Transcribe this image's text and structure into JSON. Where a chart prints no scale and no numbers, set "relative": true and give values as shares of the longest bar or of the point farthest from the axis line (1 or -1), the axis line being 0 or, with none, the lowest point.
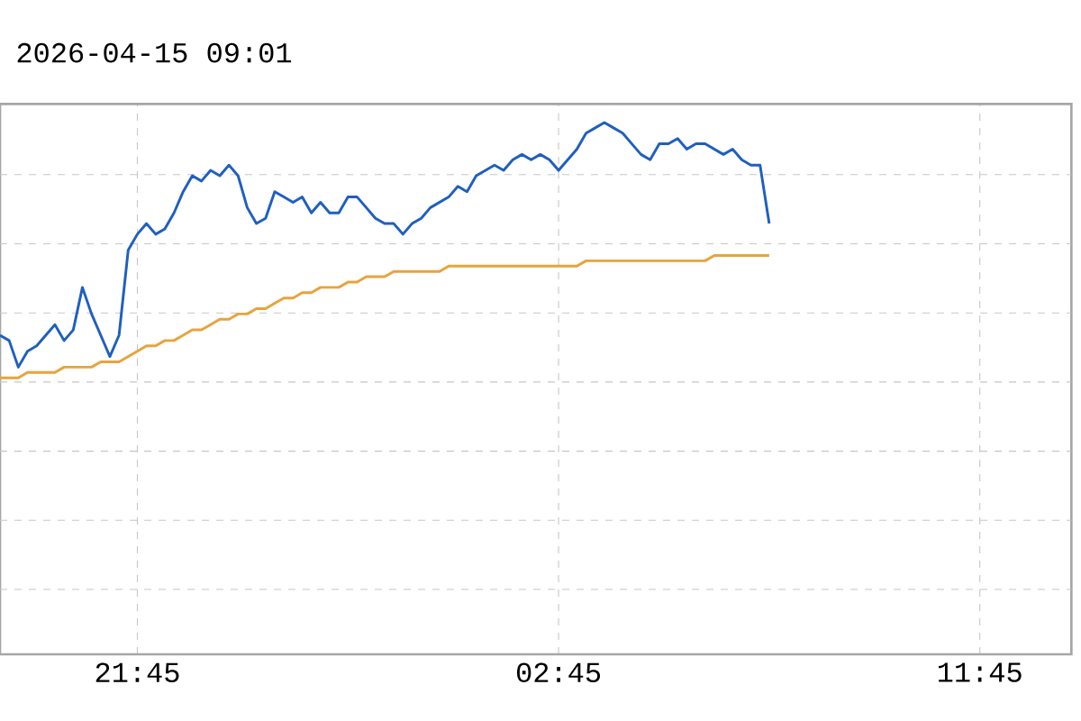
{
  "chart_data": {
    "type": "line",
    "title": "2026-04-15 09:01",
    "relative": true,
    "grid": true,
    "marker": "none",
    "line_style": "solid",
    "categories": [
      null,
      null,
      null,
      null,
      null,
      null,
      null,
      null,
      null,
      null,
      null,
      null,
      null,
      null,
      null,
      "21:45",
      null,
      null,
      null,
      null,
      null,
      null,
      null,
      null,
      null,
      null,
      null,
      null,
      null,
      null,
      null,
      null,
      null,
      null,
      null,
      null,
      null,
      null,
      null,
      null,
      null,
      null,
      null,
      null,
      null,
      null,
      null,
      null,
      null,
      null,
      null,
      null,
      null,
      null,
      null,
      null,
      null,
      null,
      null,
      null,
      null,
      "02:45",
      null,
      null,
      null,
      null,
      null,
      null,
      null,
      null,
      null,
      null,
      null,
      null,
      null,
      null,
      null,
      null,
      null,
      null,
      null,
      null,
      null,
      null,
      null,
      null,
      null,
      null,
      null,
      null,
      null,
      null,
      null,
      null,
      null,
      null,
      null,
      null,
      null,
      null,
      null,
      null,
      null,
      null,
      null,
      null,
      null,
      "11:45",
      null,
      null,
      null,
      null,
      null,
      null,
      null,
      null,
      null,
      null
    ],
    "series": [
      {
        "color": "#1f5fbf",
        "values": [
          0.6,
          0.59,
          0.54,
          0.57,
          0.58,
          0.6,
          0.62,
          0.59,
          0.61,
          0.69,
          0.64,
          0.6,
          0.56,
          0.6,
          0.76,
          0.79,
          0.81,
          0.79,
          0.8,
          0.83,
          0.87,
          0.9,
          0.89,
          0.91,
          0.9,
          0.92,
          0.9,
          0.84,
          0.81,
          0.82,
          0.87,
          0.86,
          0.85,
          0.86,
          0.83,
          0.85,
          0.83,
          0.83,
          0.86,
          0.86,
          0.84,
          0.82,
          0.81,
          0.81,
          0.79,
          0.81,
          0.82,
          0.84,
          0.85,
          0.86,
          0.88,
          0.87,
          0.9,
          0.91,
          0.92,
          0.91,
          0.93,
          0.94,
          0.93,
          0.94,
          0.93,
          0.91,
          0.93,
          0.95,
          0.98,
          0.99,
          1.0,
          0.99,
          0.98,
          0.96,
          0.94,
          0.93,
          0.96,
          0.96,
          0.97,
          0.95,
          0.96,
          0.96,
          0.95,
          0.94,
          0.95,
          0.93,
          0.92,
          0.92,
          0.81,
          null,
          null,
          null,
          null,
          null,
          null,
          null,
          null,
          null,
          null,
          null,
          null,
          null,
          null,
          null,
          null,
          null,
          null,
          null,
          null,
          null,
          null,
          null,
          null,
          null,
          null,
          null,
          null,
          null,
          null,
          null,
          null,
          null
        ]
      },
      {
        "color": "#e8a33c",
        "values": [
          0.52,
          0.52,
          0.52,
          0.53,
          0.53,
          0.53,
          0.53,
          0.54,
          0.54,
          0.54,
          0.54,
          0.55,
          0.55,
          0.55,
          0.56,
          0.57,
          0.58,
          0.58,
          0.59,
          0.59,
          0.6,
          0.61,
          0.61,
          0.62,
          0.63,
          0.63,
          0.64,
          0.64,
          0.65,
          0.65,
          0.66,
          0.67,
          0.67,
          0.68,
          0.68,
          0.69,
          0.69,
          0.69,
          0.7,
          0.7,
          0.71,
          0.71,
          0.71,
          0.72,
          0.72,
          0.72,
          0.72,
          0.72,
          0.72,
          0.73,
          0.73,
          0.73,
          0.73,
          0.73,
          0.73,
          0.73,
          0.73,
          0.73,
          0.73,
          0.73,
          0.73,
          0.73,
          0.73,
          0.73,
          0.74,
          0.74,
          0.74,
          0.74,
          0.74,
          0.74,
          0.74,
          0.74,
          0.74,
          0.74,
          0.74,
          0.74,
          0.74,
          0.74,
          0.75,
          0.75,
          0.75,
          0.75,
          0.75,
          0.75,
          0.75,
          null,
          null,
          null,
          null,
          null,
          null,
          null,
          null,
          null,
          null,
          null,
          null,
          null,
          null,
          null,
          null,
          null,
          null,
          null,
          null,
          null,
          null,
          null,
          null,
          null,
          null,
          null,
          null,
          null,
          null,
          null,
          null,
          null
        ]
      }
    ]
  }
}
